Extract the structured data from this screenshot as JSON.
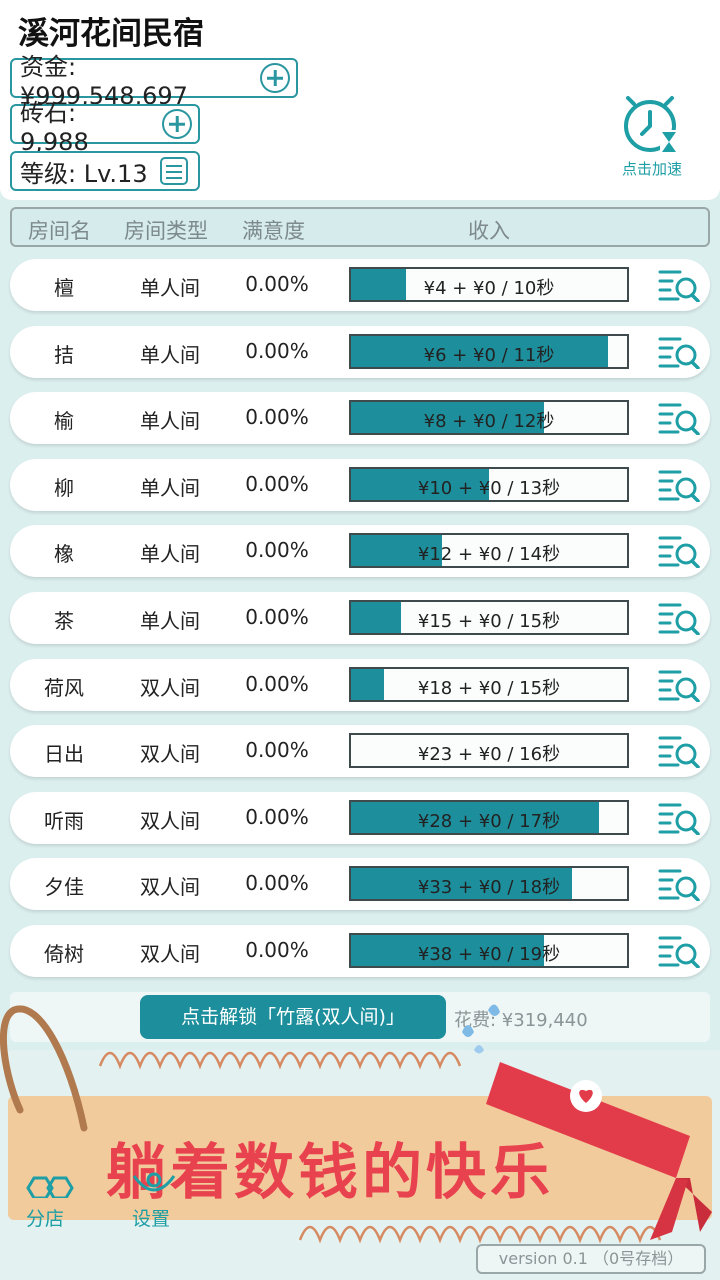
{
  "header": {
    "title": "溪河花间民宿",
    "funds_label": "资金: ¥999,548,697",
    "gems_label": "砖石: 9,988",
    "level_label": "等级: Lv.13",
    "speed_label": "点击加速"
  },
  "table": {
    "headers": [
      "房间名",
      "房间类型",
      "满意度",
      "收入"
    ],
    "rows": [
      {
        "name": "檀",
        "type": "单人间",
        "satisfaction": "0.00%",
        "income": "¥4 + ¥0 / 10秒",
        "progress": 0.2
      },
      {
        "name": "拮",
        "type": "单人间",
        "satisfaction": "0.00%",
        "income": "¥6 + ¥0 / 11秒",
        "progress": 0.93
      },
      {
        "name": "榆",
        "type": "单人间",
        "satisfaction": "0.00%",
        "income": "¥8 + ¥0 / 12秒",
        "progress": 0.7
      },
      {
        "name": "柳",
        "type": "单人间",
        "satisfaction": "0.00%",
        "income": "¥10 + ¥0 / 13秒",
        "progress": 0.5
      },
      {
        "name": "橡",
        "type": "单人间",
        "satisfaction": "0.00%",
        "income": "¥12 + ¥0 / 14秒",
        "progress": 0.33
      },
      {
        "name": "茶",
        "type": "单人间",
        "satisfaction": "0.00%",
        "income": "¥15 + ¥0 / 15秒",
        "progress": 0.18
      },
      {
        "name": "荷风",
        "type": "双人间",
        "satisfaction": "0.00%",
        "income": "¥18 + ¥0 / 15秒",
        "progress": 0.12
      },
      {
        "name": "日出",
        "type": "双人间",
        "satisfaction": "0.00%",
        "income": "¥23 + ¥0 / 16秒",
        "progress": 0.0
      },
      {
        "name": "听雨",
        "type": "双人间",
        "satisfaction": "0.00%",
        "income": "¥28 + ¥0 / 17秒",
        "progress": 0.9
      },
      {
        "name": "夕佳",
        "type": "双人间",
        "satisfaction": "0.00%",
        "income": "¥33 + ¥0 / 18秒",
        "progress": 0.8
      },
      {
        "name": "倚树",
        "type": "双人间",
        "satisfaction": "0.00%",
        "income": "¥38 + ¥0 / 19秒",
        "progress": 0.7
      }
    ]
  },
  "unlock": {
    "button_label": "点击解锁「竹露(双人间)」",
    "cost_label": "花费: ¥319,440"
  },
  "banner": {
    "text": "躺着数钱的快乐"
  },
  "nav": {
    "branch_label": "分店",
    "settings_label": "设置"
  },
  "version": "version 0.1 （0号存档）",
  "icons": {
    "funds_add": "plus-circle-icon",
    "gems_add": "plus-circle-icon",
    "level_detail": "list-icon",
    "speed": "clock-hourglass-icon",
    "row_detail": "list-search-icon"
  },
  "colors": {
    "accent": "#1d8f9c",
    "banner_text": "#e8424f",
    "background": "#dcefef"
  }
}
